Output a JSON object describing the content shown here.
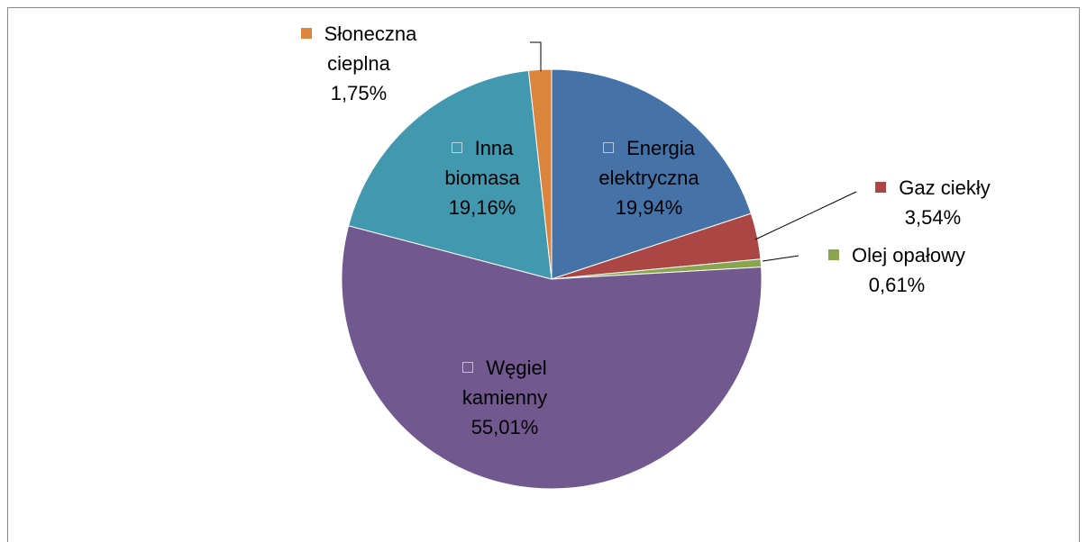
{
  "chart_data": {
    "type": "pie",
    "categories": [
      "Energia elektryczna",
      "Gaz ciekły",
      "Olej opałowy",
      "Węgiel kamienny",
      "Inna biomasa",
      "Słoneczna cieplna"
    ],
    "values": [
      19.94,
      3.54,
      0.61,
      55.01,
      19.16,
      1.75
    ],
    "value_labels": [
      "19,94%",
      "3,54%",
      "0,61%",
      "55,01%",
      "19,16%",
      "1,75%"
    ],
    "colors": [
      "#4572a7",
      "#aa4643",
      "#89a54e",
      "#71588f",
      "#4198af",
      "#db843d"
    ]
  }
}
